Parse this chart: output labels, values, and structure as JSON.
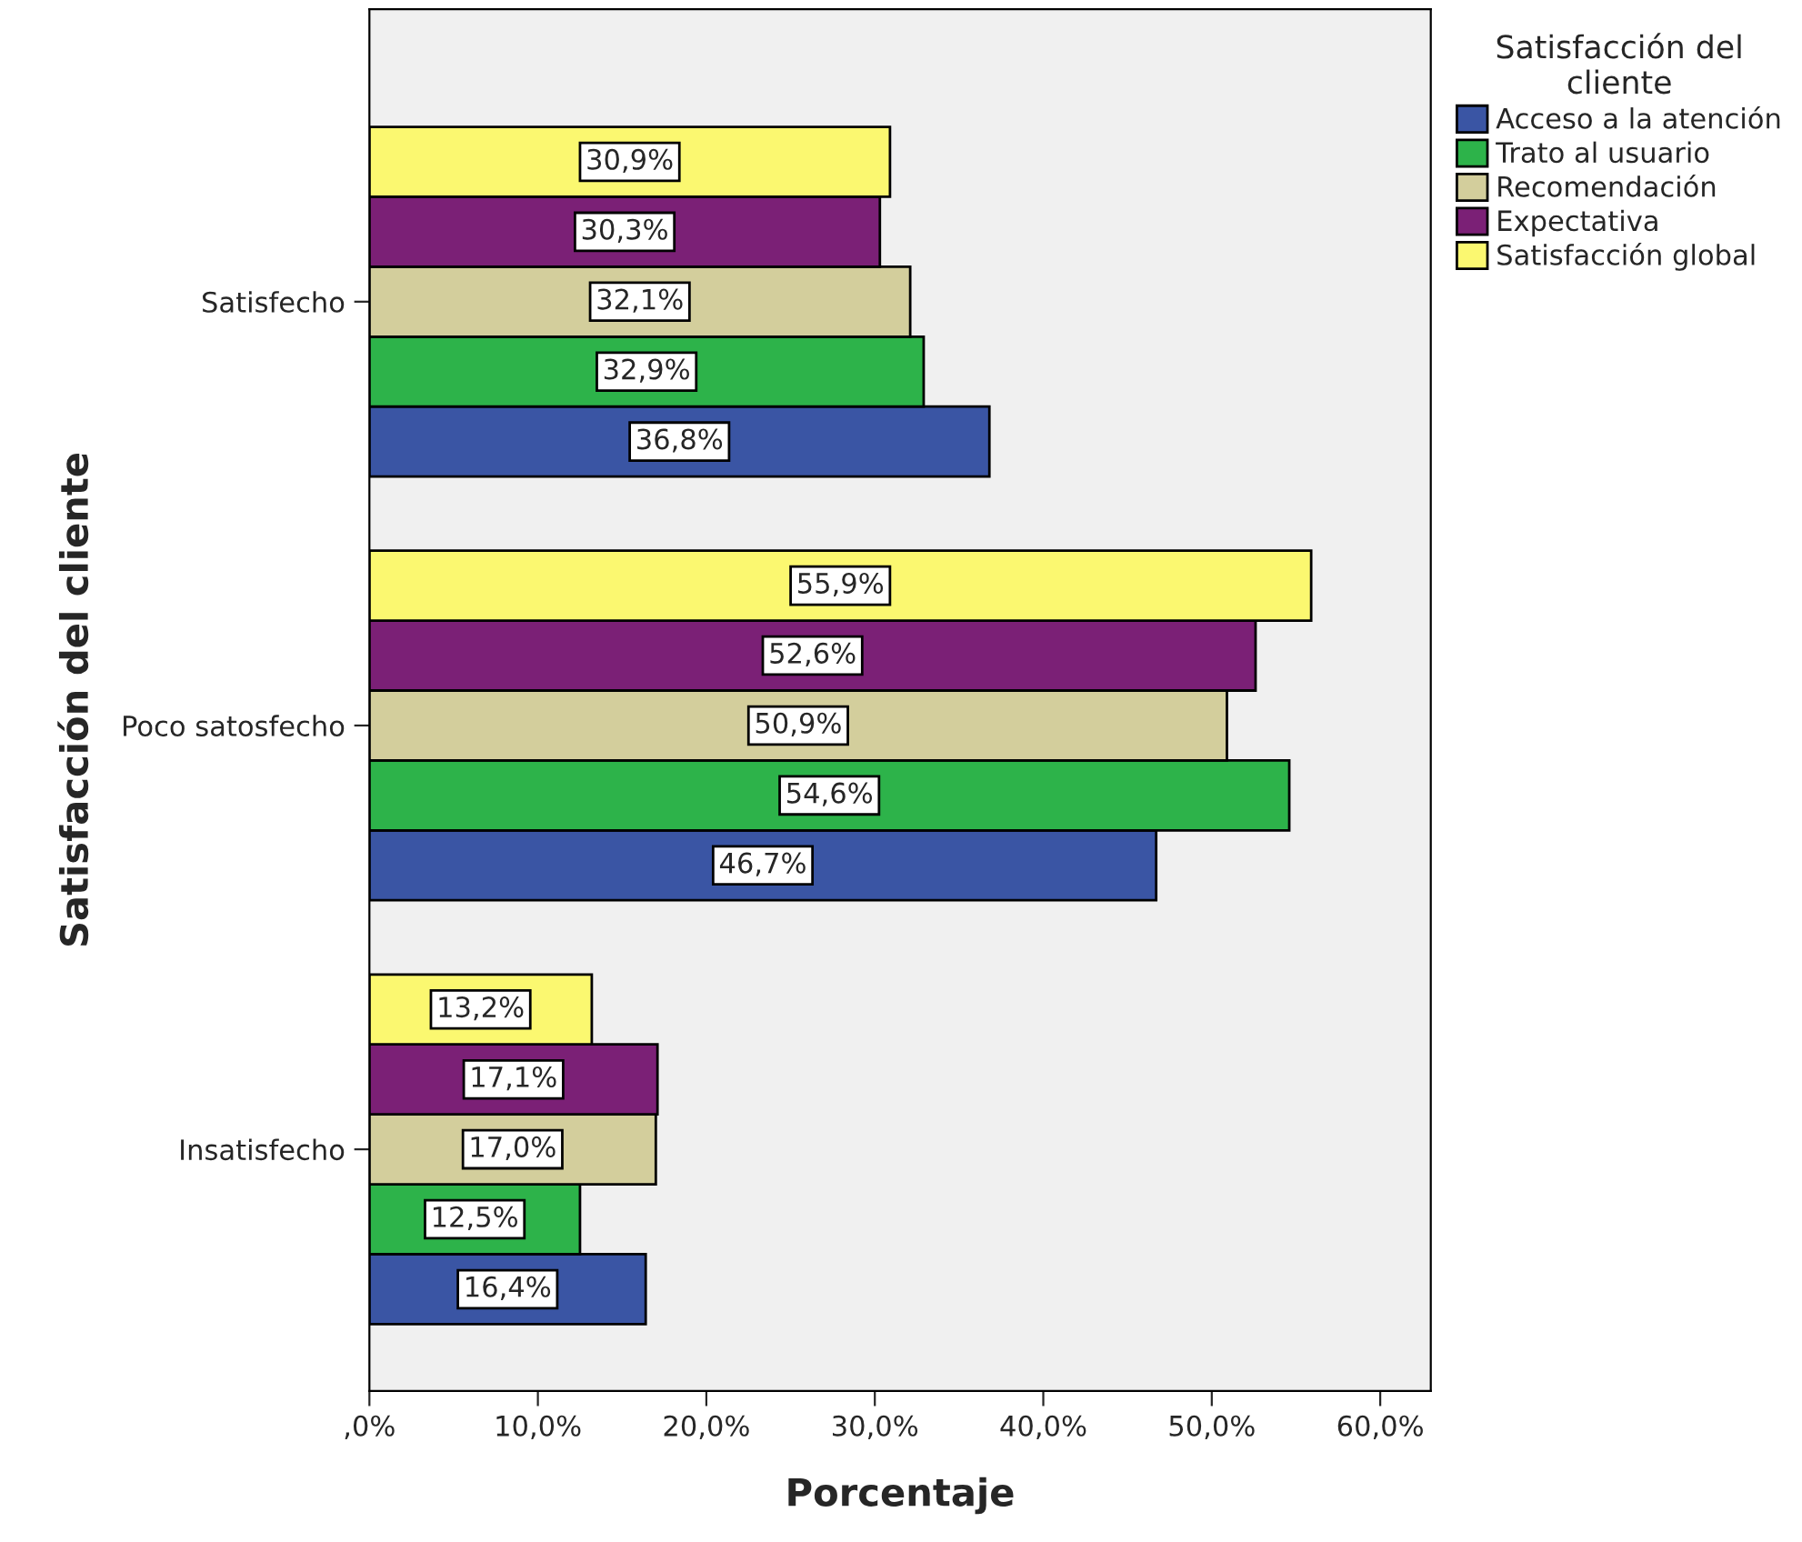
{
  "chart_data": {
    "type": "bar",
    "orientation": "horizontal",
    "xlabel": "Porcentaje",
    "ylabel": "Satisfacción del cliente",
    "legend_title": "Satisfacción del\ncliente",
    "categories": [
      "Satisfecho",
      "Poco satosfecho",
      "Insatisfecho"
    ],
    "series": [
      {
        "name": "Acceso a la atención",
        "color": "#3a55a4",
        "values": [
          36.8,
          46.7,
          16.4
        ],
        "value_labels": [
          "36,8%",
          "46,7%",
          "16,4%"
        ]
      },
      {
        "name": "Trato al usuario",
        "color": "#2db34a",
        "values": [
          32.9,
          54.6,
          12.5
        ],
        "value_labels": [
          "32,9%",
          "54,6%",
          "12,5%"
        ]
      },
      {
        "name": "Recomendación",
        "color": "#d3ce9c",
        "values": [
          32.1,
          50.9,
          17.0
        ],
        "value_labels": [
          "32,1%",
          "50,9%",
          "17,0%"
        ]
      },
      {
        "name": "Expectativa",
        "color": "#7b2076",
        "values": [
          30.3,
          52.6,
          17.1
        ],
        "value_labels": [
          "30,3%",
          "52,6%",
          "17,1%"
        ]
      },
      {
        "name": "Satisfacción global",
        "color": "#fbf870",
        "values": [
          30.9,
          55.9,
          13.2
        ],
        "value_labels": [
          "30,9%",
          "55,9%",
          "13,2%"
        ]
      }
    ],
    "xlim": [
      0,
      63
    ],
    "xticks": [
      {
        "value": 0,
        "label": ",0%"
      },
      {
        "value": 10,
        "label": "10,0%"
      },
      {
        "value": 20,
        "label": "20,0%"
      },
      {
        "value": 30,
        "label": "30,0%"
      },
      {
        "value": 40,
        "label": "40,0%"
      },
      {
        "value": 50,
        "label": "50,0%"
      },
      {
        "value": 60,
        "label": "60,0%"
      }
    ],
    "grid": false,
    "legend": "top right"
  }
}
